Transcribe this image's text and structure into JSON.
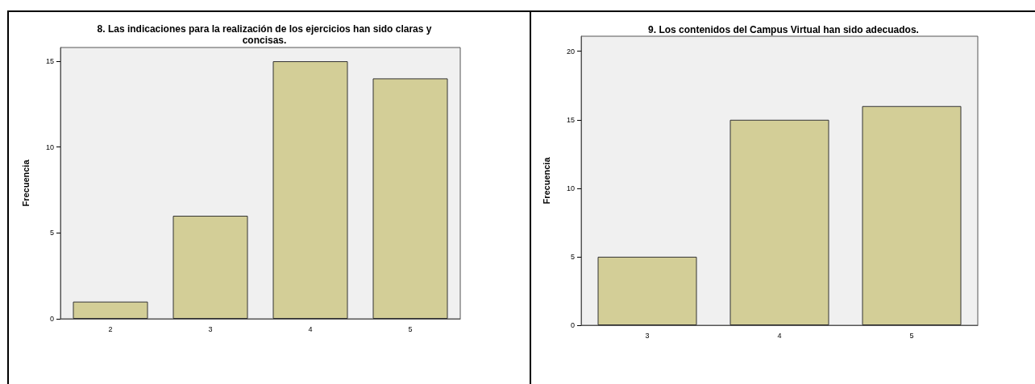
{
  "chart_data": [
    {
      "type": "bar",
      "title": "8. Las indicaciones para la realización de los ejercicios han sido claras y\nconcisas.",
      "ylabel": "Frecuencia",
      "categories": [
        "2",
        "3",
        "4",
        "5"
      ],
      "values": [
        1,
        6,
        15,
        14
      ],
      "color": "#d3ce97",
      "ylim": [
        0,
        15.8
      ],
      "yticks": [
        0,
        5,
        10,
        15
      ],
      "grid": false
    },
    {
      "type": "bar",
      "title": "9. Los contenidos del Campus Virtual han sido adecuados.",
      "ylabel": "Frecuencia",
      "categories": [
        "3",
        "4",
        "5"
      ],
      "values": [
        5,
        15,
        16
      ],
      "color": "#d3ce97",
      "ylim": [
        0,
        21.1
      ],
      "yticks": [
        0,
        5,
        10,
        15,
        20
      ],
      "grid": false
    }
  ]
}
